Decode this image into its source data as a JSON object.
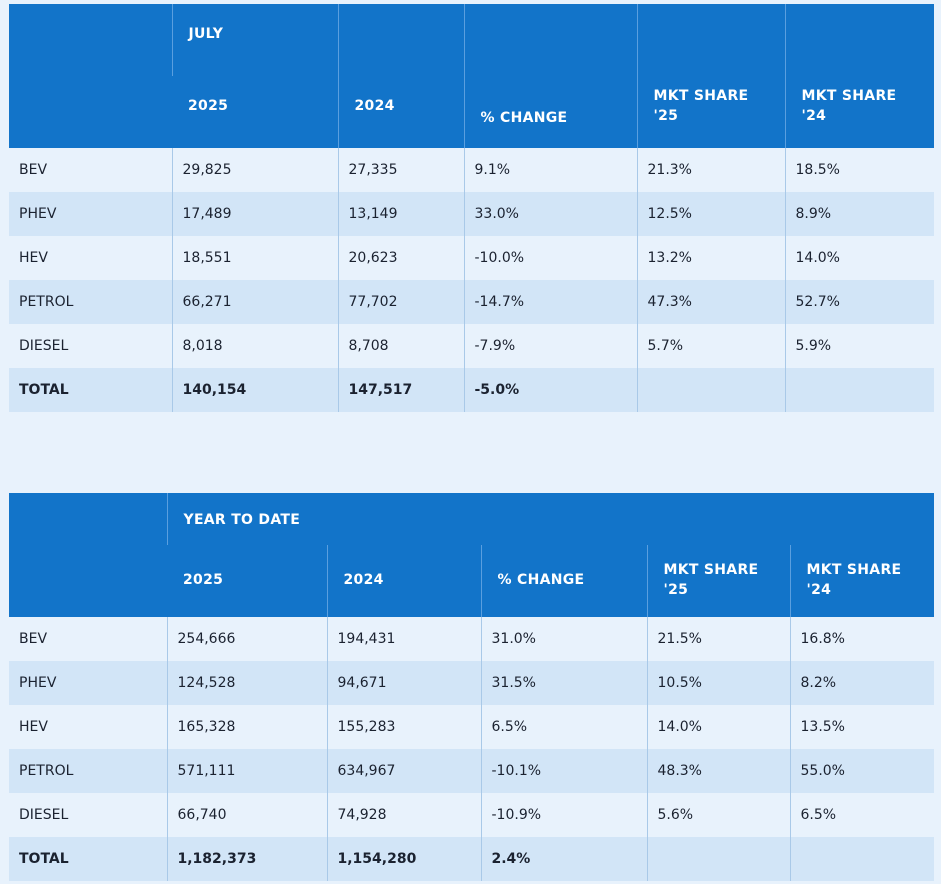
{
  "july": {
    "title": "JULY",
    "columns": [
      "2025",
      "2024",
      "% CHANGE",
      "MKT SHARE '25",
      "MKT SHARE '24"
    ],
    "rows": [
      [
        "BEV",
        "29,825",
        "27,335",
        "9.1%",
        "21.3%",
        "18.5%"
      ],
      [
        "PHEV",
        "17,489",
        "13,149",
        "33.0%",
        "12.5%",
        "8.9%"
      ],
      [
        "HEV",
        "18,551",
        "20,623",
        "-10.0%",
        "13.2%",
        "14.0%"
      ],
      [
        "PETROL",
        "66,271",
        "77,702",
        "-14.7%",
        "47.3%",
        "52.7%"
      ],
      [
        "DIESEL",
        "8,018",
        "8,708",
        "-7.9%",
        "5.7%",
        "5.9%"
      ],
      [
        "TOTAL",
        "140,154",
        "147,517",
        "-5.0%",
        "",
        ""
      ]
    ]
  },
  "ytd": {
    "title": "YEAR TO DATE",
    "columns": [
      "2025",
      "2024",
      "% CHANGE",
      "MKT SHARE '25",
      "MKT SHARE '24"
    ],
    "rows": [
      [
        "BEV",
        "254,666",
        "194,431",
        "31.0%",
        "21.5%",
        "16.8%"
      ],
      [
        "PHEV",
        "124,528",
        "94,671",
        "31.5%",
        "10.5%",
        "8.2%"
      ],
      [
        "HEV",
        "165,328",
        "155,283",
        "6.5%",
        "14.0%",
        "13.5%"
      ],
      [
        "PETROL",
        "571,111",
        "634,967",
        "-10.1%",
        "48.3%",
        "55.0%"
      ],
      [
        "DIESEL",
        "66,740",
        "74,928",
        "-10.9%",
        "5.6%",
        "6.5%"
      ],
      [
        "TOTAL",
        "1,182,373",
        "1,154,280",
        "2.4%",
        "",
        ""
      ]
    ]
  }
}
